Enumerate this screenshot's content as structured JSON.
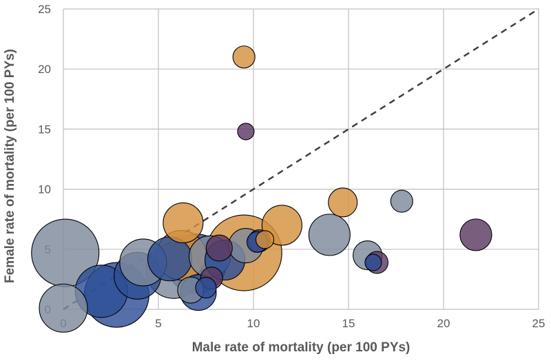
{
  "chart_data": {
    "type": "scatter",
    "subtype": "bubble",
    "title": "",
    "xlabel": "Male rate of mortality (per 100 PYs)",
    "ylabel": "Female rate of mortality (per 100 PYs)",
    "xlim": [
      0,
      25
    ],
    "ylim": [
      0,
      25
    ],
    "xticks": [
      "0",
      "5",
      "10",
      "15",
      "20",
      "25"
    ],
    "yticks": [
      "0",
      "5",
      "10",
      "15",
      "20",
      "25"
    ],
    "grid": true,
    "reference_line": {
      "label": "y = x",
      "style": "dashed",
      "from": [
        0,
        0
      ],
      "to": [
        25,
        25
      ]
    },
    "colors": {
      "gray": "#7f8a9c",
      "orange": "#d4913f",
      "purple": "#5d3b63",
      "blue": "#2e4f96"
    },
    "points": [
      {
        "x": 9.5,
        "y": 4.7,
        "size": 55,
        "group": "orange"
      },
      {
        "x": 0.1,
        "y": 4.7,
        "size": 49,
        "group": "gray"
      },
      {
        "x": 2.8,
        "y": 1.2,
        "size": 47,
        "group": "blue"
      },
      {
        "x": 0.0,
        "y": 0.1,
        "size": 35,
        "group": "gray"
      },
      {
        "x": 5.8,
        "y": 3.2,
        "size": 40,
        "group": "gray"
      },
      {
        "x": 6.2,
        "y": 4.5,
        "size": 36,
        "group": "orange"
      },
      {
        "x": 7.0,
        "y": 3.8,
        "size": 43,
        "group": "blue"
      },
      {
        "x": 2.0,
        "y": 1.5,
        "size": 38,
        "group": "blue"
      },
      {
        "x": 3.9,
        "y": 2.8,
        "size": 34,
        "group": "blue"
      },
      {
        "x": 4.2,
        "y": 3.9,
        "size": 34,
        "group": "gray"
      },
      {
        "x": 5.6,
        "y": 4.2,
        "size": 32,
        "group": "blue"
      },
      {
        "x": 7.7,
        "y": 4.4,
        "size": 30,
        "group": "gray"
      },
      {
        "x": 8.5,
        "y": 4.1,
        "size": 29,
        "group": "blue"
      },
      {
        "x": 11.5,
        "y": 7.0,
        "size": 29,
        "group": "orange"
      },
      {
        "x": 14.0,
        "y": 6.2,
        "size": 30,
        "group": "gray"
      },
      {
        "x": 6.3,
        "y": 7.2,
        "size": 29,
        "group": "orange"
      },
      {
        "x": 9.6,
        "y": 5.3,
        "size": 25,
        "group": "gray"
      },
      {
        "x": 8.2,
        "y": 5.1,
        "size": 19,
        "group": "purple"
      },
      {
        "x": 7.8,
        "y": 2.6,
        "size": 16,
        "group": "purple"
      },
      {
        "x": 7.5,
        "y": 1.8,
        "size": 15,
        "group": "blue"
      },
      {
        "x": 7.1,
        "y": 1.4,
        "size": 26,
        "group": "blue"
      },
      {
        "x": 6.7,
        "y": 1.6,
        "size": 19,
        "group": "gray"
      },
      {
        "x": 10.3,
        "y": 5.7,
        "size": 16,
        "group": "purple"
      },
      {
        "x": 10.6,
        "y": 5.8,
        "size": 13,
        "group": "orange"
      },
      {
        "x": 10.2,
        "y": 5.6,
        "size": 15,
        "group": "blue"
      },
      {
        "x": 14.7,
        "y": 8.9,
        "size": 21,
        "group": "orange"
      },
      {
        "x": 16.0,
        "y": 4.5,
        "size": 21,
        "group": "gray"
      },
      {
        "x": 16.5,
        "y": 3.9,
        "size": 16,
        "group": "purple"
      },
      {
        "x": 16.3,
        "y": 3.9,
        "size": 12,
        "group": "blue"
      },
      {
        "x": 17.8,
        "y": 9.0,
        "size": 16,
        "group": "gray"
      },
      {
        "x": 21.7,
        "y": 6.2,
        "size": 23,
        "group": "purple"
      },
      {
        "x": 9.5,
        "y": 21.0,
        "size": 16,
        "group": "orange"
      },
      {
        "x": 9.6,
        "y": 14.8,
        "size": 12,
        "group": "purple"
      }
    ]
  }
}
